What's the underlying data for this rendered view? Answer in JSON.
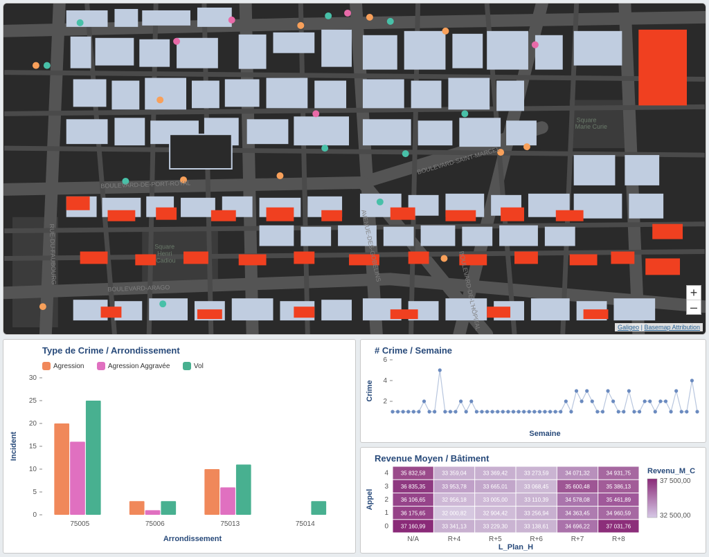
{
  "map": {
    "background": "#2a2a2a",
    "road_color": "#545454",
    "building_light": "#c0cde0",
    "building_highlight": "#f04020",
    "park_color": "#3b3b3b",
    "park_label_color": "#6a7a6a",
    "road_label_color": "#808080",
    "dot_colors": {
      "orange": "#f8a05a",
      "pink": "#e86aa8",
      "teal": "#48c0a8"
    },
    "road_labels": [
      "BOULEVARD-SAINT-…",
      "BOULEVARD-DE-PORT-ROYAL",
      "BOULEVARD-ARAGO",
      "BOULEVARD-SAINT-MARCEL",
      "RUE-DU-FAUBOURG",
      "AVENUE-DES-GOBELINS",
      "BOULEVARD-DE-L'HÔPITAL"
    ],
    "park_labels": [
      "Square Henri Cadiou",
      "Square Marie Curie"
    ],
    "attribution_left": "Galigeo",
    "attribution_right": "Basemap Attribution",
    "zoom_plus": "+",
    "zoom_minus": "–"
  },
  "bar_chart": {
    "title": "Type de Crime / Arrondissement",
    "xlabel": "Arrondissement",
    "ylabel": "Incident",
    "categories": [
      "75005",
      "75006",
      "75013",
      "75014"
    ],
    "series": [
      {
        "name": "Agression",
        "color": "#f0885a",
        "values": [
          20,
          3,
          10,
          0
        ]
      },
      {
        "name": "Agression Aggravée",
        "color": "#e070c0",
        "values": [
          16,
          1,
          6,
          0
        ]
      },
      {
        "name": "Vol",
        "color": "#48b090",
        "values": [
          25,
          3,
          11,
          3
        ]
      }
    ],
    "ylim": [
      0,
      30
    ],
    "ytick_step": 5,
    "title_color": "#284a7a",
    "axis_color": "#284a7a"
  },
  "line_chart": {
    "title": "# Crime / Semaine",
    "xlabel": "Semaine",
    "ylabel": "Crime",
    "point_color": "#6a8abf",
    "line_color": "#b8c6de",
    "ylim": [
      0,
      6
    ],
    "yticks": [
      2,
      4,
      6
    ],
    "values": [
      1,
      1,
      1,
      1,
      1,
      1,
      2,
      1,
      1,
      5,
      1,
      1,
      1,
      2,
      1,
      2,
      1,
      1,
      1,
      1,
      1,
      1,
      1,
      1,
      1,
      1,
      1,
      1,
      1,
      1,
      1,
      1,
      1,
      2,
      1,
      3,
      2,
      3,
      2,
      1,
      1,
      3,
      2,
      1,
      1,
      3,
      1,
      1,
      2,
      2,
      1,
      2,
      2,
      1,
      3,
      1,
      1,
      4,
      1
    ]
  },
  "heatmap": {
    "title": "Revenue Moyen / Bâtiment",
    "xlabel": "L_Plan_H",
    "ylabel": "Appel",
    "legend_title": "Revenu_M_C",
    "legend_min": "32 500,00",
    "legend_max": "37 500,00",
    "color_low": "#d6c8e6",
    "color_high": "#8a2a78",
    "xcols": [
      "N/A",
      "R+4",
      "R+5",
      "R+6",
      "R+7",
      "R+8"
    ],
    "yrows": [
      "4",
      "3",
      "2",
      "1",
      "0"
    ],
    "cells": [
      [
        "35 832,58",
        "33 359,04",
        "33 369,42",
        "33 273,59",
        "34 071,32",
        "34 931,75"
      ],
      [
        "36 835,35",
        "33 953,78",
        "33 665,01",
        "33 068,45",
        "35 600,48",
        "35 386,13"
      ],
      [
        "36 106,65",
        "32 956,18",
        "33 005,00",
        "33 110,39",
        "34 578,08",
        "35 461,89"
      ],
      [
        "36 175,65",
        "32 000,82",
        "32 904,42",
        "33 256,94",
        "34 363,45",
        "34 960,59"
      ],
      [
        "37 160,99",
        "33 341,13",
        "33 229,30",
        "33 138,61",
        "34 696,22",
        "37 031,76"
      ]
    ],
    "cell_colors": [
      [
        "#9a4a8a",
        "#c8b0d0",
        "#c8b0d0",
        "#cab4d2",
        "#b890bc",
        "#a668a0"
      ],
      [
        "#8e3880",
        "#c0a0c8",
        "#c2a6ca",
        "#ccb8d4",
        "#9e5694",
        "#a25c98"
      ],
      [
        "#96448a",
        "#ceb8d6",
        "#ceb8d6",
        "#cab4d2",
        "#aa74ac",
        "#a0589a"
      ],
      [
        "#964288",
        "#d6c8e0",
        "#d0bcd8",
        "#c8b0d0",
        "#ae7cb0",
        "#a668a2"
      ],
      [
        "#8a2a78",
        "#c8b0d0",
        "#cab4d2",
        "#cab4d2",
        "#aa72aa",
        "#8c2e7a"
      ]
    ]
  }
}
